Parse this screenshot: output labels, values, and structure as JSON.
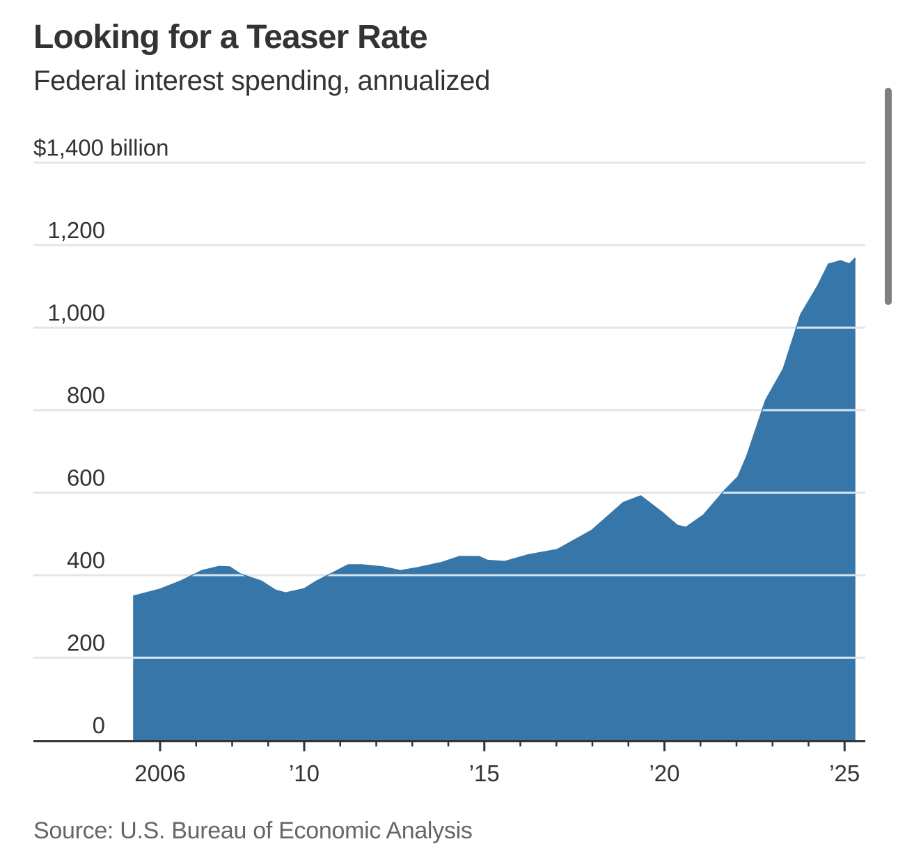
{
  "chart_data": {
    "type": "area",
    "title": "Looking for a Teaser Rate",
    "subtitle": "Federal interest spending, annualized",
    "xlabel": "",
    "ylabel": "$ billion",
    "source": "Source: U.S. Bureau of Economic Analysis",
    "color": "#3776a8",
    "grid": true,
    "ylim": [
      0,
      1400
    ],
    "xlim": [
      2004.7,
      2025.5
    ],
    "yticks": [
      {
        "value": 0,
        "label": "0"
      },
      {
        "value": 200,
        "label": "200"
      },
      {
        "value": 400,
        "label": "400"
      },
      {
        "value": 600,
        "label": "600"
      },
      {
        "value": 800,
        "label": "800"
      },
      {
        "value": 1000,
        "label": "1,000"
      },
      {
        "value": 1200,
        "label": "1,200"
      },
      {
        "value": 1400,
        "label": "$1,400 billion"
      }
    ],
    "xticks_major": [
      {
        "value": 2006,
        "label": "2006"
      },
      {
        "value": 2010,
        "label": "’10"
      },
      {
        "value": 2015,
        "label": "’15"
      },
      {
        "value": 2020,
        "label": "’20"
      },
      {
        "value": 2025,
        "label": "’25"
      }
    ],
    "xticks_minor": [
      2007,
      2008,
      2009,
      2011,
      2012,
      2013,
      2014,
      2016,
      2017,
      2018,
      2019,
      2021,
      2022,
      2023,
      2024
    ],
    "series": [
      {
        "name": "Federal interest spending, annualized",
        "x": [
          2005.25,
          2006.0,
          2006.58,
          2007.16,
          2007.64,
          2007.93,
          2008.22,
          2008.8,
          2009.19,
          2009.48,
          2010.0,
          2010.35,
          2011.22,
          2011.6,
          2012.18,
          2012.67,
          2013.15,
          2013.83,
          2014.31,
          2014.85,
          2015.08,
          2015.57,
          2016.25,
          2017.02,
          2017.99,
          2018.86,
          2019.34,
          2019.92,
          2020.35,
          2020.6,
          2021.09,
          2021.67,
          2022.05,
          2022.3,
          2022.82,
          2023.31,
          2023.79,
          2024.27,
          2024.56,
          2024.89,
          2025.14,
          2025.3
        ],
        "values": [
          348,
          365,
          385,
          410,
          420,
          419,
          402,
          385,
          363,
          356,
          366,
          385,
          424,
          424,
          419,
          410,
          417,
          430,
          444,
          444,
          435,
          432,
          449,
          461,
          508,
          575,
          591,
          552,
          520,
          515,
          545,
          604,
          638,
          689,
          824,
          900,
          1031,
          1102,
          1153,
          1161,
          1153,
          1168
        ]
      }
    ]
  },
  "ui": {
    "scrollbar": "vertical-scrollbar"
  }
}
